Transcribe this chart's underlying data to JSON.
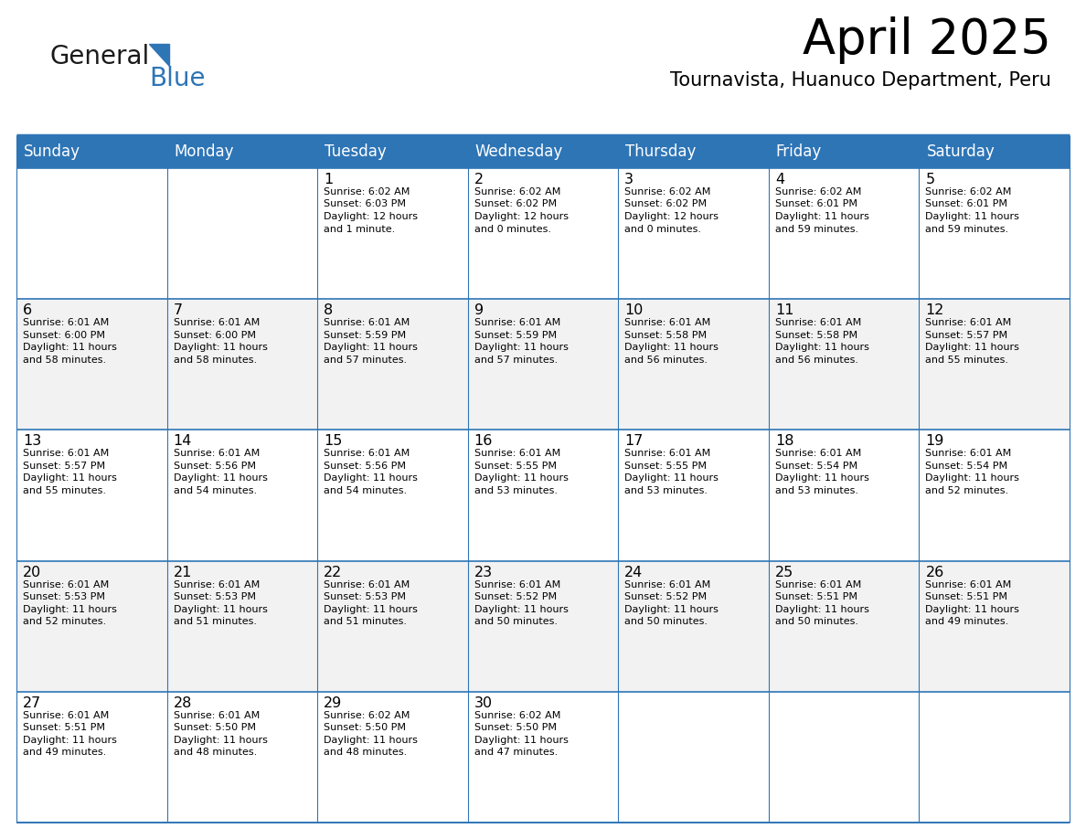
{
  "title": "April 2025",
  "subtitle": "Tournavista, Huanuco Department, Peru",
  "header_color": "#2E75B6",
  "header_text_color": "#FFFFFF",
  "day_names": [
    "Sunday",
    "Monday",
    "Tuesday",
    "Wednesday",
    "Thursday",
    "Friday",
    "Saturday"
  ],
  "bg_color": "#FFFFFF",
  "cell_bg_even": "#F2F2F2",
  "cell_bg_odd": "#FFFFFF",
  "border_color": "#2E75B6",
  "text_color": "#000000",
  "logo_general_color": "#1a1a1a",
  "logo_blue_color": "#2E75B6",
  "calendar": [
    [
      {
        "day": "",
        "sunrise": "",
        "sunset": "",
        "daylight": ""
      },
      {
        "day": "",
        "sunrise": "",
        "sunset": "",
        "daylight": ""
      },
      {
        "day": "1",
        "sunrise": "6:02 AM",
        "sunset": "6:03 PM",
        "daylight": "12 hours and 1 minute."
      },
      {
        "day": "2",
        "sunrise": "6:02 AM",
        "sunset": "6:02 PM",
        "daylight": "12 hours and 0 minutes."
      },
      {
        "day": "3",
        "sunrise": "6:02 AM",
        "sunset": "6:02 PM",
        "daylight": "12 hours and 0 minutes."
      },
      {
        "day": "4",
        "sunrise": "6:02 AM",
        "sunset": "6:01 PM",
        "daylight": "11 hours and 59 minutes."
      },
      {
        "day": "5",
        "sunrise": "6:02 AM",
        "sunset": "6:01 PM",
        "daylight": "11 hours and 59 minutes."
      }
    ],
    [
      {
        "day": "6",
        "sunrise": "6:01 AM",
        "sunset": "6:00 PM",
        "daylight": "11 hours and 58 minutes."
      },
      {
        "day": "7",
        "sunrise": "6:01 AM",
        "sunset": "6:00 PM",
        "daylight": "11 hours and 58 minutes."
      },
      {
        "day": "8",
        "sunrise": "6:01 AM",
        "sunset": "5:59 PM",
        "daylight": "11 hours and 57 minutes."
      },
      {
        "day": "9",
        "sunrise": "6:01 AM",
        "sunset": "5:59 PM",
        "daylight": "11 hours and 57 minutes."
      },
      {
        "day": "10",
        "sunrise": "6:01 AM",
        "sunset": "5:58 PM",
        "daylight": "11 hours and 56 minutes."
      },
      {
        "day": "11",
        "sunrise": "6:01 AM",
        "sunset": "5:58 PM",
        "daylight": "11 hours and 56 minutes."
      },
      {
        "day": "12",
        "sunrise": "6:01 AM",
        "sunset": "5:57 PM",
        "daylight": "11 hours and 55 minutes."
      }
    ],
    [
      {
        "day": "13",
        "sunrise": "6:01 AM",
        "sunset": "5:57 PM",
        "daylight": "11 hours and 55 minutes."
      },
      {
        "day": "14",
        "sunrise": "6:01 AM",
        "sunset": "5:56 PM",
        "daylight": "11 hours and 54 minutes."
      },
      {
        "day": "15",
        "sunrise": "6:01 AM",
        "sunset": "5:56 PM",
        "daylight": "11 hours and 54 minutes."
      },
      {
        "day": "16",
        "sunrise": "6:01 AM",
        "sunset": "5:55 PM",
        "daylight": "11 hours and 53 minutes."
      },
      {
        "day": "17",
        "sunrise": "6:01 AM",
        "sunset": "5:55 PM",
        "daylight": "11 hours and 53 minutes."
      },
      {
        "day": "18",
        "sunrise": "6:01 AM",
        "sunset": "5:54 PM",
        "daylight": "11 hours and 53 minutes."
      },
      {
        "day": "19",
        "sunrise": "6:01 AM",
        "sunset": "5:54 PM",
        "daylight": "11 hours and 52 minutes."
      }
    ],
    [
      {
        "day": "20",
        "sunrise": "6:01 AM",
        "sunset": "5:53 PM",
        "daylight": "11 hours and 52 minutes."
      },
      {
        "day": "21",
        "sunrise": "6:01 AM",
        "sunset": "5:53 PM",
        "daylight": "11 hours and 51 minutes."
      },
      {
        "day": "22",
        "sunrise": "6:01 AM",
        "sunset": "5:53 PM",
        "daylight": "11 hours and 51 minutes."
      },
      {
        "day": "23",
        "sunrise": "6:01 AM",
        "sunset": "5:52 PM",
        "daylight": "11 hours and 50 minutes."
      },
      {
        "day": "24",
        "sunrise": "6:01 AM",
        "sunset": "5:52 PM",
        "daylight": "11 hours and 50 minutes."
      },
      {
        "day": "25",
        "sunrise": "6:01 AM",
        "sunset": "5:51 PM",
        "daylight": "11 hours and 50 minutes."
      },
      {
        "day": "26",
        "sunrise": "6:01 AM",
        "sunset": "5:51 PM",
        "daylight": "11 hours and 49 minutes."
      }
    ],
    [
      {
        "day": "27",
        "sunrise": "6:01 AM",
        "sunset": "5:51 PM",
        "daylight": "11 hours and 49 minutes."
      },
      {
        "day": "28",
        "sunrise": "6:01 AM",
        "sunset": "5:50 PM",
        "daylight": "11 hours and 48 minutes."
      },
      {
        "day": "29",
        "sunrise": "6:02 AM",
        "sunset": "5:50 PM",
        "daylight": "11 hours and 48 minutes."
      },
      {
        "day": "30",
        "sunrise": "6:02 AM",
        "sunset": "5:50 PM",
        "daylight": "11 hours and 47 minutes."
      },
      {
        "day": "",
        "sunrise": "",
        "sunset": "",
        "daylight": ""
      },
      {
        "day": "",
        "sunrise": "",
        "sunset": "",
        "daylight": ""
      },
      {
        "day": "",
        "sunrise": "",
        "sunset": "",
        "daylight": ""
      }
    ]
  ]
}
